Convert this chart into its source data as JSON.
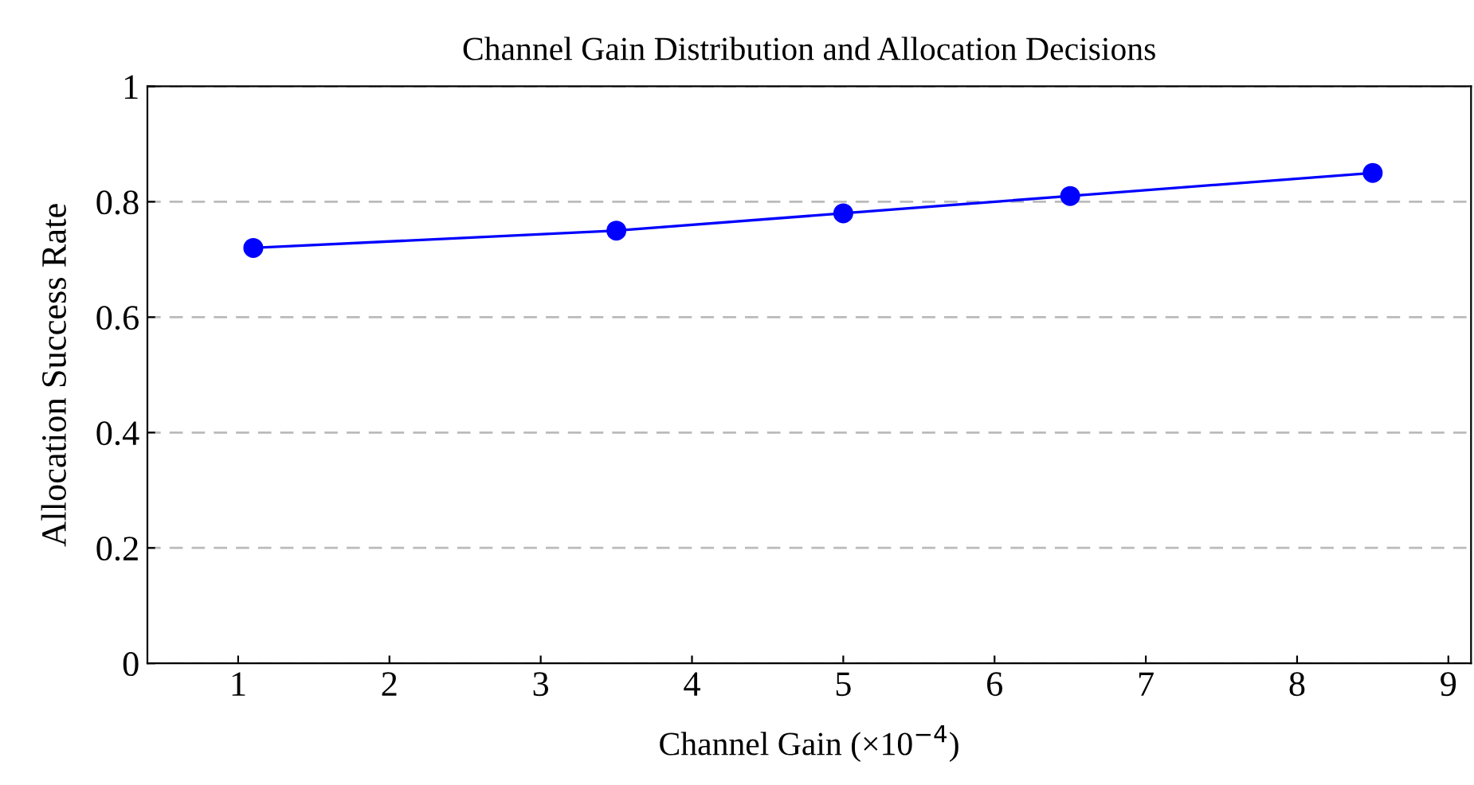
{
  "chart_data": {
    "type": "line",
    "title": "Channel Gain Distribution and Allocation Decisions",
    "xlabel": "Channel Gain (×10$^{−4}$)",
    "ylabel": "Allocation Success Rate",
    "x": [
      1.1,
      3.5,
      5,
      6.5,
      8.5
    ],
    "series": [
      {
        "color": "#0000ff",
        "values": [
          0.72,
          0.75,
          0.78,
          0.81,
          0.85
        ]
      }
    ],
    "xlim": [
      0.4,
      9.15
    ],
    "xticks": [
      1,
      2,
      3,
      4,
      5,
      6,
      7,
      8,
      9
    ],
    "ylim": [
      0,
      1
    ],
    "yticks": [
      0,
      0.2,
      0.4,
      0.6,
      0.8,
      1
    ],
    "grid": "y",
    "marker": "circle",
    "line_style": "solid",
    "legend": false
  }
}
